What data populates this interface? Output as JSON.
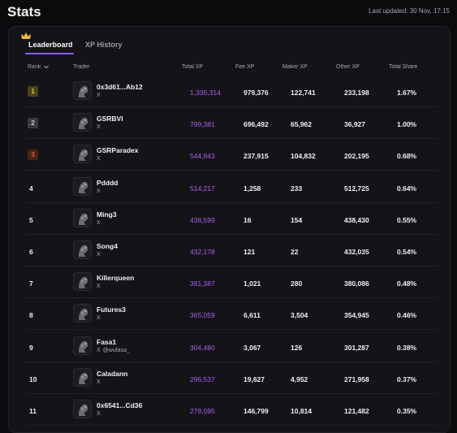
{
  "header": {
    "title": "Stats",
    "last_updated": "Last updated: 30 Nov, 17:15"
  },
  "tabs": [
    {
      "label": "Leaderboard",
      "active": true
    },
    {
      "label": "XP History",
      "active": false
    }
  ],
  "columns": {
    "rank": "Rank",
    "trader": "Trader",
    "total_xp": "Total XP",
    "fee_xp": "Fee XP",
    "maker_xp": "Maker XP",
    "other_xp": "Other XP",
    "total_share": "Total Share"
  },
  "colors": {
    "accent": "#8d5cff",
    "xp_text": "#b05cf0",
    "gold": "#d8c24a",
    "silver": "#c7c7cc",
    "bronze": "#e0653a"
  },
  "rows": [
    {
      "rank": "1",
      "name": "0x3d61...Ab12",
      "social": "X",
      "handle": "",
      "total_xp": "1,335,314",
      "fee_xp": "979,376",
      "maker_xp": "122,741",
      "other_xp": "233,198",
      "share": "1.67%"
    },
    {
      "rank": "2",
      "name": "GSRBVI",
      "social": "X",
      "handle": "",
      "total_xp": "799,381",
      "fee_xp": "696,492",
      "maker_xp": "65,962",
      "other_xp": "36,927",
      "share": "1.00%"
    },
    {
      "rank": "3",
      "name": "GSRParadex",
      "social": "X",
      "handle": "",
      "total_xp": "544,943",
      "fee_xp": "237,915",
      "maker_xp": "104,832",
      "other_xp": "202,195",
      "share": "0.68%"
    },
    {
      "rank": "4",
      "name": "Pdddd",
      "social": "X",
      "handle": "",
      "total_xp": "514,217",
      "fee_xp": "1,258",
      "maker_xp": "233",
      "other_xp": "512,725",
      "share": "0.64%"
    },
    {
      "rank": "5",
      "name": "Ming3",
      "social": "X",
      "handle": "",
      "total_xp": "438,599",
      "fee_xp": "16",
      "maker_xp": "154",
      "other_xp": "438,430",
      "share": "0.55%"
    },
    {
      "rank": "6",
      "name": "Song4",
      "social": "X",
      "handle": "",
      "total_xp": "432,178",
      "fee_xp": "121",
      "maker_xp": "22",
      "other_xp": "432,035",
      "share": "0.54%"
    },
    {
      "rank": "7",
      "name": "Killerqueen",
      "social": "X",
      "handle": "",
      "total_xp": "381,387",
      "fee_xp": "1,021",
      "maker_xp": "280",
      "other_xp": "380,086",
      "share": "0.48%"
    },
    {
      "rank": "8",
      "name": "Futures3",
      "social": "X",
      "handle": "",
      "total_xp": "365,059",
      "fee_xp": "6,611",
      "maker_xp": "3,504",
      "other_xp": "354,945",
      "share": "0.46%"
    },
    {
      "rank": "9",
      "name": "Fasa1",
      "social": "X",
      "handle": "@wufasa_",
      "total_xp": "304,480",
      "fee_xp": "3,067",
      "maker_xp": "126",
      "other_xp": "301,287",
      "share": "0.38%"
    },
    {
      "rank": "10",
      "name": "Caladann",
      "social": "X",
      "handle": "",
      "total_xp": "296,537",
      "fee_xp": "19,627",
      "maker_xp": "4,952",
      "other_xp": "271,958",
      "share": "0.37%"
    },
    {
      "rank": "11",
      "name": "0x6541...Cd36",
      "social": "X",
      "handle": "",
      "total_xp": "279,095",
      "fee_xp": "146,799",
      "maker_xp": "10,814",
      "other_xp": "121,482",
      "share": "0.35%"
    }
  ]
}
